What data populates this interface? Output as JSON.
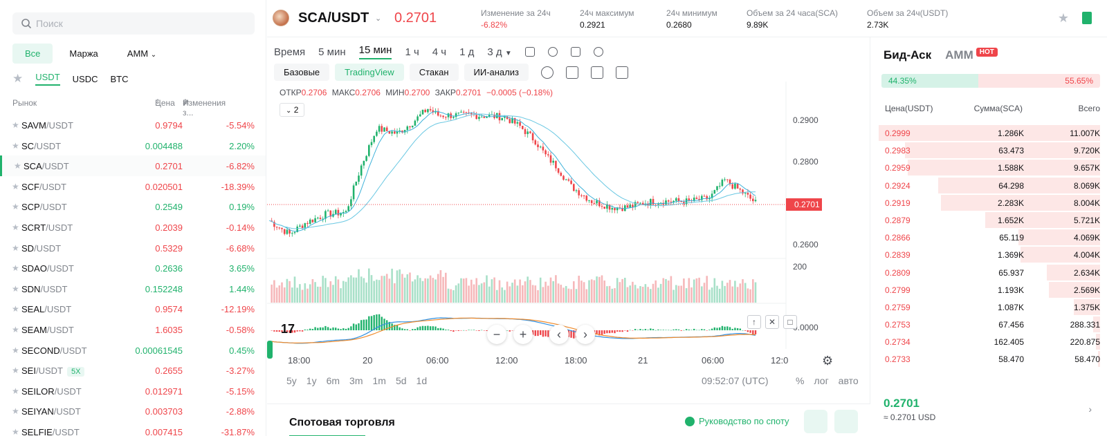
{
  "search": {
    "placeholder": "Поиск"
  },
  "category_tabs": [
    "Все",
    "Маржа",
    "AMM"
  ],
  "quote_tabs": [
    "USDT",
    "USDC",
    "BTC"
  ],
  "market_headers": {
    "market": "Рынок",
    "price": "Цена",
    "change": "Изменения з..."
  },
  "markets": [
    {
      "base": "SAVM",
      "quote": "/USDT",
      "price": "0.9794",
      "change": "-5.54%",
      "dir": "red"
    },
    {
      "base": "SC",
      "quote": "/USDT",
      "price": "0.004488",
      "change": "2.20%",
      "dir": "green"
    },
    {
      "base": "SCA",
      "quote": "/USDT",
      "price": "0.2701",
      "change": "-6.82%",
      "dir": "red"
    },
    {
      "base": "SCF",
      "quote": "/USDT",
      "price": "0.020501",
      "change": "-18.39%",
      "dir": "red"
    },
    {
      "base": "SCP",
      "quote": "/USDT",
      "price": "0.2549",
      "change": "0.19%",
      "dir": "green"
    },
    {
      "base": "SCRT",
      "quote": "/USDT",
      "price": "0.2039",
      "change": "-0.14%",
      "dir": "red"
    },
    {
      "base": "SD",
      "quote": "/USDT",
      "price": "0.5329",
      "change": "-6.68%",
      "dir": "red"
    },
    {
      "base": "SDAO",
      "quote": "/USDT",
      "price": "0.2636",
      "change": "3.65%",
      "dir": "green"
    },
    {
      "base": "SDN",
      "quote": "/USDT",
      "price": "0.152248",
      "change": "1.44%",
      "dir": "green"
    },
    {
      "base": "SEAL",
      "quote": "/USDT",
      "price": "0.9574",
      "change": "-12.19%",
      "dir": "red"
    },
    {
      "base": "SEAM",
      "quote": "/USDT",
      "price": "1.6035",
      "change": "-0.58%",
      "dir": "red"
    },
    {
      "base": "SECOND",
      "quote": "/USDT",
      "price": "0.00061545",
      "change": "0.45%",
      "dir": "green"
    },
    {
      "base": "SEI",
      "quote": "/USDT",
      "badge": "5X",
      "price": "0.2655",
      "change": "-3.27%",
      "dir": "red"
    },
    {
      "base": "SEILOR",
      "quote": "/USDT",
      "price": "0.012971",
      "change": "-5.15%",
      "dir": "red"
    },
    {
      "base": "SEIYAN",
      "quote": "/USDT",
      "price": "0.003703",
      "change": "-2.88%",
      "dir": "red"
    },
    {
      "base": "SELFIE",
      "quote": "/USDT",
      "price": "0.007415",
      "change": "-31.87%",
      "dir": "red"
    }
  ],
  "header": {
    "pair": "SCA/USDT",
    "price": "0.2701",
    "stats": [
      {
        "label": "Изменение за 24ч",
        "value": "-6.82%"
      },
      {
        "label": "24ч максимум",
        "value": "0.2921"
      },
      {
        "label": "24ч минимум",
        "value": "0.2680"
      },
      {
        "label": "Объем за 24 часа(SCA)",
        "value": "9.89K"
      },
      {
        "label": "Объем за 24ч(USDT)",
        "value": "2.73K"
      }
    ]
  },
  "intervals": [
    "Время",
    "5 мин",
    "15 мин",
    "1 ч",
    "4 ч",
    "1 д",
    "3 д"
  ],
  "chart_views": [
    "Базовые",
    "TradingView",
    "Стакан",
    "ИИ-анализ"
  ],
  "ohlc": {
    "o_label": "ОТКР",
    "o": "0.2706",
    "h_label": "МАКС",
    "h": "0.2706",
    "l_label": "МИН",
    "l": "0.2700",
    "c_label": "ЗАКР",
    "c": "0.2701",
    "delta": "−0.0005 (−0.18%)"
  },
  "indicator_count": "2",
  "chart_data": {
    "type": "candlestick",
    "y_ticks": [
      "0.2900",
      "0.2800",
      "0.2600"
    ],
    "last_price_label": "0.2701",
    "volume_tick": "200",
    "macd_tick": "0.0000",
    "x_ticks": [
      "18:00",
      "20",
      "06:00",
      "12:00",
      "18:00",
      "21",
      "06:00",
      "12:0"
    ]
  },
  "ranges": [
    "5y",
    "1y",
    "6m",
    "3m",
    "1m",
    "5d",
    "1d"
  ],
  "clock": "09:52:07 (UTC)",
  "scale_opts": [
    "%",
    "лог",
    "авто"
  ],
  "spot": {
    "title": "Спотовая торговля",
    "guide": "Руководство по споту"
  },
  "book": {
    "tabs": [
      "Бид-Аск",
      "AMM"
    ],
    "hot": "HOT",
    "buy_ratio": "44.35%",
    "sell_ratio": "55.65%",
    "headers": {
      "price": "Цена(USDT)",
      "size": "Сумма(SCA)",
      "total": "Всего"
    },
    "asks": [
      {
        "p": "0.2999",
        "q": "1.286K",
        "t": "11.007K",
        "depth": 1.0
      },
      {
        "p": "0.2983",
        "q": "63.473",
        "t": "9.720K",
        "depth": 0.88
      },
      {
        "p": "0.2959",
        "q": "1.588K",
        "t": "9.657K",
        "depth": 0.87
      },
      {
        "p": "0.2924",
        "q": "64.298",
        "t": "8.069K",
        "depth": 0.73
      },
      {
        "p": "0.2919",
        "q": "2.283K",
        "t": "8.004K",
        "depth": 0.72
      },
      {
        "p": "0.2879",
        "q": "1.652K",
        "t": "5.721K",
        "depth": 0.52
      },
      {
        "p": "0.2866",
        "q": "65.119",
        "t": "4.069K",
        "depth": 0.37
      },
      {
        "p": "0.2839",
        "q": "1.369K",
        "t": "4.004K",
        "depth": 0.36
      },
      {
        "p": "0.2809",
        "q": "65.937",
        "t": "2.634K",
        "depth": 0.24
      },
      {
        "p": "0.2799",
        "q": "1.193K",
        "t": "2.569K",
        "depth": 0.23
      },
      {
        "p": "0.2759",
        "q": "1.087K",
        "t": "1.375K",
        "depth": 0.12
      },
      {
        "p": "0.2753",
        "q": "67.456",
        "t": "288.331",
        "depth": 0.03
      },
      {
        "p": "0.2734",
        "q": "162.405",
        "t": "220.875",
        "depth": 0.02
      },
      {
        "p": "0.2733",
        "q": "58.470",
        "t": "58.470",
        "depth": 0.01
      }
    ],
    "mid_price": "0.2701",
    "mid_usd": "≈ 0.2701 USD"
  }
}
